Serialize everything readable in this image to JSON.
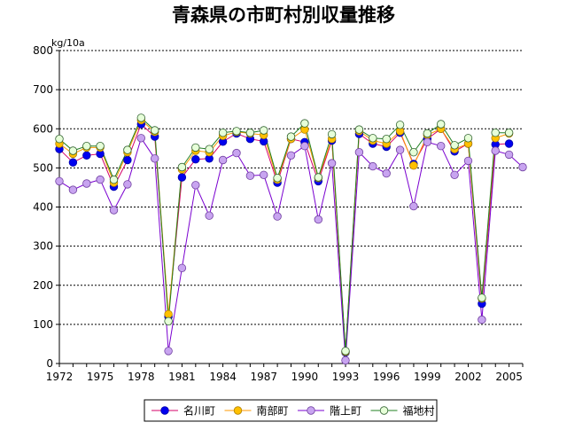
{
  "chart_data": {
    "type": "line",
    "title": "青森県の市町村別収量推移",
    "ylabel": "kg/10a",
    "ylim": [
      0,
      800
    ],
    "yticks": [
      0,
      100,
      200,
      300,
      400,
      500,
      600,
      700,
      800
    ],
    "xlim": [
      1972,
      2006
    ],
    "xticks": [
      1972,
      1975,
      1978,
      1981,
      1984,
      1987,
      1990,
      1993,
      1996,
      1999,
      2002,
      2005
    ],
    "grid": true,
    "legend_position": "bottom",
    "series": [
      {
        "name": "名川町",
        "line_color": "#d4006a",
        "marker_fill": "#0000ee",
        "marker_stroke": "#0000aa",
        "x": [
          1972,
          1973,
          1974,
          1975,
          1976,
          1977,
          1978,
          1979,
          1980,
          1981,
          1982,
          1983,
          1984,
          1985,
          1986,
          1987,
          1988,
          1989,
          1990,
          1991,
          1992,
          1993,
          1994,
          1995,
          1996,
          1997,
          1998,
          1999,
          2000,
          2001,
          2002,
          2003,
          2004,
          2005
        ],
        "values": [
          548,
          514,
          532,
          536,
          452,
          520,
          612,
          580,
          120,
          476,
          522,
          524,
          567,
          588,
          574,
          568,
          462,
          574,
          566,
          466,
          570,
          28,
          587,
          562,
          554,
          590,
          510,
          574,
          600,
          542,
          562,
          153,
          560,
          562
        ]
      },
      {
        "name": "南部町",
        "line_color": "#ff9900",
        "marker_fill": "#ffc000",
        "marker_stroke": "#b08000",
        "x": [
          1972,
          1973,
          1974,
          1975,
          1976,
          1977,
          1978,
          1979,
          1980,
          1981,
          1982,
          1983,
          1984,
          1985,
          1986,
          1987,
          1988,
          1989,
          1990,
          1991,
          1992,
          1993,
          1994,
          1995,
          1996,
          1997,
          1998,
          1999,
          2000,
          2001,
          2002,
          2003,
          2004,
          2005
        ],
        "values": [
          562,
          536,
          552,
          552,
          462,
          540,
          622,
          592,
          126,
          496,
          544,
          540,
          582,
          592,
          588,
          584,
          470,
          574,
          598,
          474,
          574,
          30,
          594,
          570,
          562,
          594,
          506,
          584,
          600,
          548,
          562,
          166,
          576,
          588
        ]
      },
      {
        "name": "階上町",
        "line_color": "#7a00d0",
        "marker_fill": "#c8a4f0",
        "marker_stroke": "#7040a0",
        "x": [
          1972,
          1973,
          1974,
          1975,
          1976,
          1977,
          1978,
          1979,
          1980,
          1981,
          1982,
          1983,
          1984,
          1985,
          1986,
          1987,
          1988,
          1989,
          1990,
          1991,
          1992,
          1993,
          1994,
          1995,
          1996,
          1997,
          1998,
          1999,
          2000,
          2001,
          2002,
          2003,
          2004,
          2005,
          2006
        ],
        "values": [
          466,
          444,
          460,
          470,
          392,
          458,
          576,
          524,
          32,
          244,
          456,
          378,
          520,
          538,
          480,
          482,
          376,
          532,
          556,
          368,
          512,
          8,
          540,
          504,
          486,
          546,
          402,
          566,
          556,
          482,
          518,
          112,
          544,
          534,
          502
        ]
      },
      {
        "name": "福地村",
        "line_color": "#208020",
        "marker_fill": "#e6ffd8",
        "marker_stroke": "#306030",
        "x": [
          1972,
          1973,
          1974,
          1975,
          1976,
          1977,
          1978,
          1979,
          1980,
          1981,
          1982,
          1983,
          1984,
          1985,
          1986,
          1987,
          1988,
          1989,
          1990,
          1991,
          1992,
          1993,
          1994,
          1995,
          1996,
          1997,
          1998,
          1999,
          2000,
          2001,
          2002,
          2003,
          2004,
          2005
        ],
        "values": [
          574,
          544,
          556,
          556,
          470,
          546,
          628,
          596,
          108,
          502,
          552,
          548,
          590,
          594,
          590,
          596,
          474,
          580,
          614,
          476,
          586,
          32,
          598,
          576,
          574,
          610,
          540,
          588,
          612,
          558,
          576,
          168,
          590,
          590
        ]
      }
    ]
  }
}
